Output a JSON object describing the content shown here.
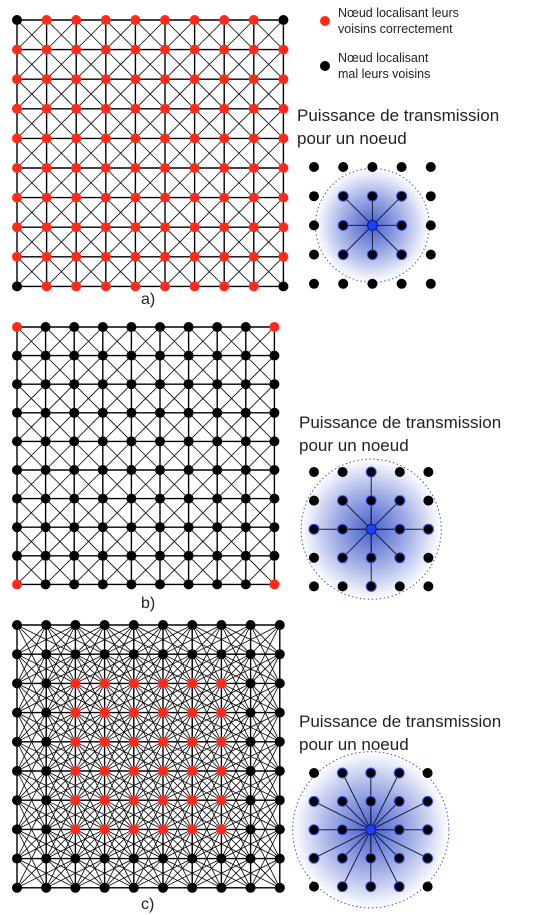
{
  "legend": {
    "items": [
      {
        "line1": "Nœud localisant leurs",
        "line2": "voisins correctement",
        "color": "#ff2a1a"
      },
      {
        "line1": "Nœud localisant",
        "line2": "mal leurs voisins",
        "color": "#000000"
      }
    ]
  },
  "colors": {
    "correct_node": "#ff2a1a",
    "incorrect_node": "#000000",
    "center_node": "#1f3fff",
    "halo": "#3a55c8",
    "edge": "#000000"
  },
  "panels": [
    {
      "label": "a)",
      "grid_size": 10,
      "neighbor_radius": 1.5,
      "correct_rule": "all-but-corners",
      "transmission": {
        "title_line1": "Puissance de transmission",
        "title_line2": "pour un noeud",
        "radius": 1.5
      }
    },
    {
      "label": "b)",
      "grid_size": 10,
      "neighbor_radius": 1.5,
      "correct_rule": "corners",
      "transmission": {
        "title_line1": "Puissance de transmission",
        "title_line2": "pour un noeud",
        "radius": 2
      }
    },
    {
      "label": "c)",
      "grid_size": 10,
      "neighbor_radius": 2.3,
      "correct_rule": "inner-6",
      "transmission": {
        "title_line1": "Puissance de transmission",
        "title_line2": "pour un noeud",
        "radius": 2.3
      }
    }
  ]
}
